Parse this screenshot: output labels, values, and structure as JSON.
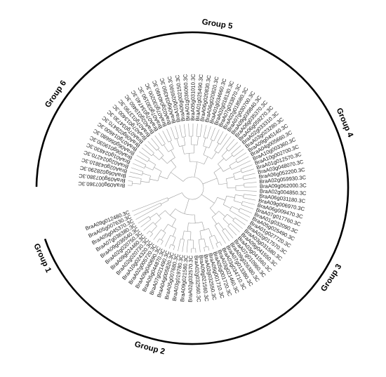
{
  "tree": {
    "leaves": [
      "BraA09g007360.3C",
      "BraA09g007380.3C",
      "BraA06g028290.3C",
      "BraA02g043810.3C",
      "BraA02g024270.3C",
      "BraA01g024830.3C",
      "BraA06g019030.3C",
      "BraA06g056680.3C",
      "BraA07g014600.3C",
      "BraA06g028470.3C",
      "BraA07g034730.3C",
      "BraA07g013400.3C",
      "BraA07g013790.3C",
      "BraA02g019460.3C",
      "BraA07g034740.3C",
      "BraA07g030190.3C",
      "BraA07g030200.3C",
      "BraA02g040490.3C",
      "BraA06g034360.3C",
      "BraA10g026590.3C",
      "BraA06g002150.3C",
      "BraA01g036060.3C",
      "BraA05g031010.3C",
      "BraA01g025490.3C",
      "BraA06g020830.3C",
      "BraA06g020820.3C",
      "BraA01g034660.3C",
      "BraA02g018130.3C",
      "BraA07g033870.3C",
      "BraA02g018580.3C",
      "BraA07g030700.3C",
      "BraA09g039840.3C",
      "BraA06g035370.3C",
      "BraA06g059270.3C",
      "BraA02g033310.3C",
      "BraA03g023280.3C",
      "BraA09g045140.3C",
      "BraA04g005660.3C",
      "BraA10g003360.3C",
      "BraA10g002700.3C",
      "BraA01g012570.3C",
      "BraA03g048070.3C",
      "BraA06g052200.3C",
      "BraA02g059930.3C",
      "BraA09g062000.3C",
      "BraA02g004850.3C",
      "BraA06g031180.3C",
      "BraA09g006970.3C",
      "BraA06g009470.3C",
      "BraA07g017760.3C",
      "BraA01g032090.3C",
      "BraA05g025490.3C",
      "BraA01g027720.3C",
      "BraA02g017570.3C",
      "BraA03g031580.3C",
      "BraA09g041550.3C",
      "BraA03g041560.3C",
      "BraA07g010960.3C",
      "BraA09g026380.3C",
      "BraA07g013380.3C",
      "BraA03g034710.3C",
      "BraA03g021460.3C",
      "BraA05g001720.3C",
      "BraA05g001710.3C",
      "BraA02g032550.3C",
      "BraA09g021560.3C",
      "BraA02g032560.3C",
      "BraA02g032570.3C",
      "BraA09g021580.3C",
      "BraA03g019780.3C",
      "BraA05g007680.3C",
      "BraA04g005820.3C",
      "BraA07g021490.3C",
      "BraA05g044870.3C",
      "BraA09g040690.3C",
      "BraA02g005720.3C",
      "BraA10g024320.3C",
      "BraA02g020730.3C",
      "BraA09g024460.3C",
      "BraA02g020750.3C",
      "BraA09g036540.3C",
      "BraA07g036380.3C",
      "BraA05g045370.3C",
      "BraA05g007630.3C",
      "BraA09g012480.3C"
    ],
    "groups": [
      {
        "name": "Group 1",
        "start": 82,
        "end": 84
      },
      {
        "name": "Group 2",
        "start": 60,
        "end": 81
      },
      {
        "name": "Group 3",
        "start": 46,
        "end": 59
      },
      {
        "name": "Group 4",
        "start": 32,
        "end": 45
      },
      {
        "name": "Group 5",
        "start": 17,
        "end": 31
      },
      {
        "name": "Group 6",
        "start": 0,
        "end": 16
      }
    ]
  }
}
